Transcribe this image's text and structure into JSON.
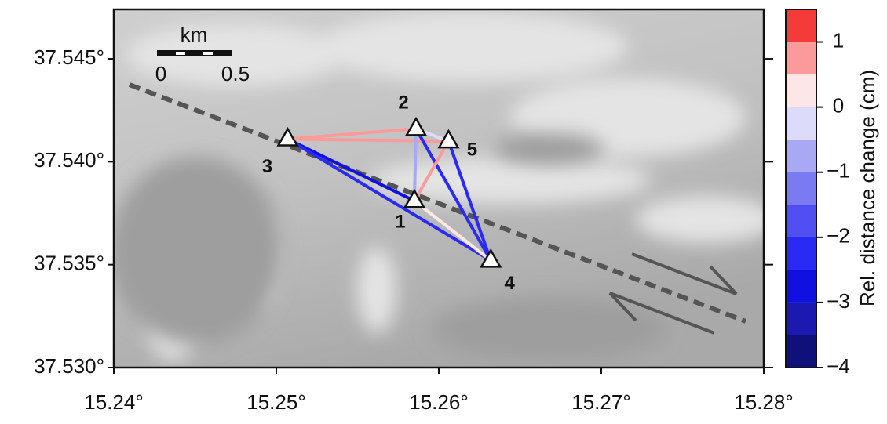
{
  "chart_data": {
    "type": "scatter",
    "stations": [
      {
        "label": "1",
        "x": 15.2585,
        "y": 37.5381
      },
      {
        "label": "2",
        "x": 15.2586,
        "y": 37.5416
      },
      {
        "label": "3",
        "x": 15.2507,
        "y": 37.5411
      },
      {
        "label": "4",
        "x": 15.2632,
        "y": 37.5352
      },
      {
        "label": "5",
        "x": 15.2606,
        "y": 37.541
      }
    ],
    "links": [
      {
        "from": "3",
        "to": "2",
        "value": 0.7
      },
      {
        "from": "3",
        "to": "5",
        "value": 0.6
      },
      {
        "from": "3",
        "to": "1",
        "value": -2.6
      },
      {
        "from": "3",
        "to": "4",
        "value": -2.4
      },
      {
        "from": "2",
        "to": "5",
        "value": -0.4
      },
      {
        "from": "2",
        "to": "1",
        "value": -0.7
      },
      {
        "from": "2",
        "to": "4",
        "value": -2.2
      },
      {
        "from": "5",
        "to": "1",
        "value": 0.7
      },
      {
        "from": "5",
        "to": "4",
        "value": -2.1
      },
      {
        "from": "1",
        "to": "4",
        "value": 0.2
      }
    ],
    "xlim": [
      15.24,
      15.28
    ],
    "xticks": [
      {
        "value": 15.24,
        "label": "15.24°"
      },
      {
        "value": 15.25,
        "label": "15.25°"
      },
      {
        "value": 15.26,
        "label": "15.26°"
      },
      {
        "value": 15.27,
        "label": "15.27°"
      },
      {
        "value": 15.28,
        "label": "15.28°"
      }
    ],
    "ylim": [
      37.53,
      37.5474
    ],
    "yticks": [
      {
        "value": 37.53,
        "label": "37.530°"
      },
      {
        "value": 37.535,
        "label": "37.535°"
      },
      {
        "value": 37.54,
        "label": "37.540°"
      },
      {
        "value": 37.545,
        "label": "37.545°"
      }
    ],
    "scale_bar": {
      "unit": "km",
      "ticks": [
        0,
        0.5
      ]
    },
    "colorbar": {
      "label": "Rel. distance change (cm)",
      "lim": [
        -4,
        1.5
      ],
      "ticks": [
        {
          "value": -4,
          "label": "−4"
        },
        {
          "value": -3,
          "label": "−3"
        },
        {
          "value": -2,
          "label": "−2"
        },
        {
          "value": -1,
          "label": "−1"
        },
        0,
        1
      ],
      "bins": [
        -4,
        -3.5,
        -3,
        -2.5,
        -2,
        -1.5,
        -1,
        -0.5,
        0,
        0.5,
        1,
        1.5
      ],
      "colors": [
        "#10107a",
        "#1a1ab0",
        "#1010e0",
        "#2a2af5",
        "#4f4ff2",
        "#7a7af2",
        "#a8a8f5",
        "#dcdcfa",
        "#fde6e6",
        "#fa9a9a",
        "#f53a3a"
      ]
    }
  }
}
